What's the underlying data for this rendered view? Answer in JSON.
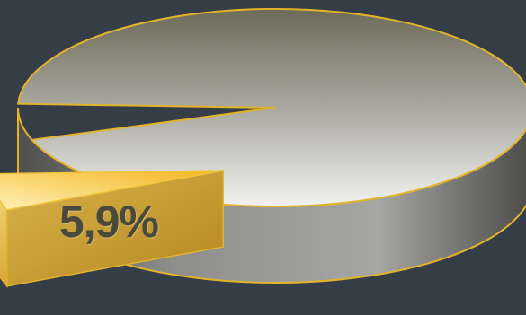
{
  "chart_data": {
    "type": "pie",
    "style": "3d-exploded",
    "slices": [
      {
        "value": 5.9,
        "label": "5,9%",
        "color": "#f5c542",
        "highlighted": true
      },
      {
        "value": 94.1,
        "label": "",
        "color": "#b8b8b0"
      }
    ],
    "title": "",
    "legend": "none"
  }
}
